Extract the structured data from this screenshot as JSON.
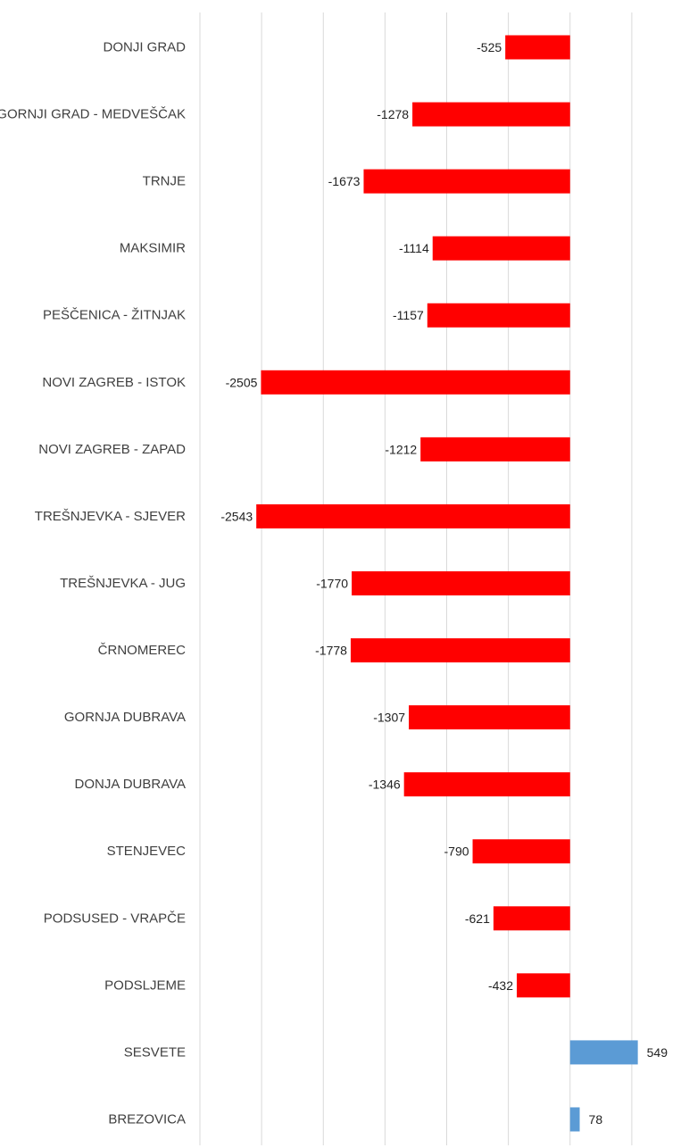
{
  "chart_data": {
    "type": "bar",
    "orientation": "horizontal",
    "categories": [
      "DONJI GRAD",
      "GORNJI GRAD - MEDVEŠČAK",
      "TRNJE",
      "MAKSIMIR",
      "PEŠČENICA - ŽITNJAK",
      "NOVI ZAGREB - ISTOK",
      "NOVI ZAGREB - ZAPAD",
      "TREŠNJEVKA - SJEVER",
      "TREŠNJEVKA - JUG",
      "ČRNOMEREC",
      "GORNJA DUBRAVA",
      "DONJA DUBRAVA",
      "STENJEVEC",
      "PODSUSED - VRAPČE",
      "PODSLJEME",
      "SESVETE",
      "BREZOVICA"
    ],
    "values": [
      -525,
      -1278,
      -1673,
      -1114,
      -1157,
      -2505,
      -1212,
      -2543,
      -1770,
      -1778,
      -1307,
      -1346,
      -790,
      -621,
      -432,
      549,
      78
    ],
    "data_labels": [
      "-525",
      "-1278",
      "-1673",
      "-1114",
      "-1157",
      "-2505",
      "-1212",
      "-2543",
      "-1770",
      "-1778",
      "-1307",
      "-1346",
      "-790",
      "-621",
      "-432",
      "549",
      "78"
    ],
    "title": "",
    "xlabel": "",
    "ylabel": "",
    "xlim": [
      -3000,
      1000
    ],
    "grid_step": 500,
    "grid": true,
    "legend": "none",
    "colors": {
      "negative": "#ff0000",
      "positive": "#5b9bd5",
      "grid": "#d9d9d9"
    }
  }
}
